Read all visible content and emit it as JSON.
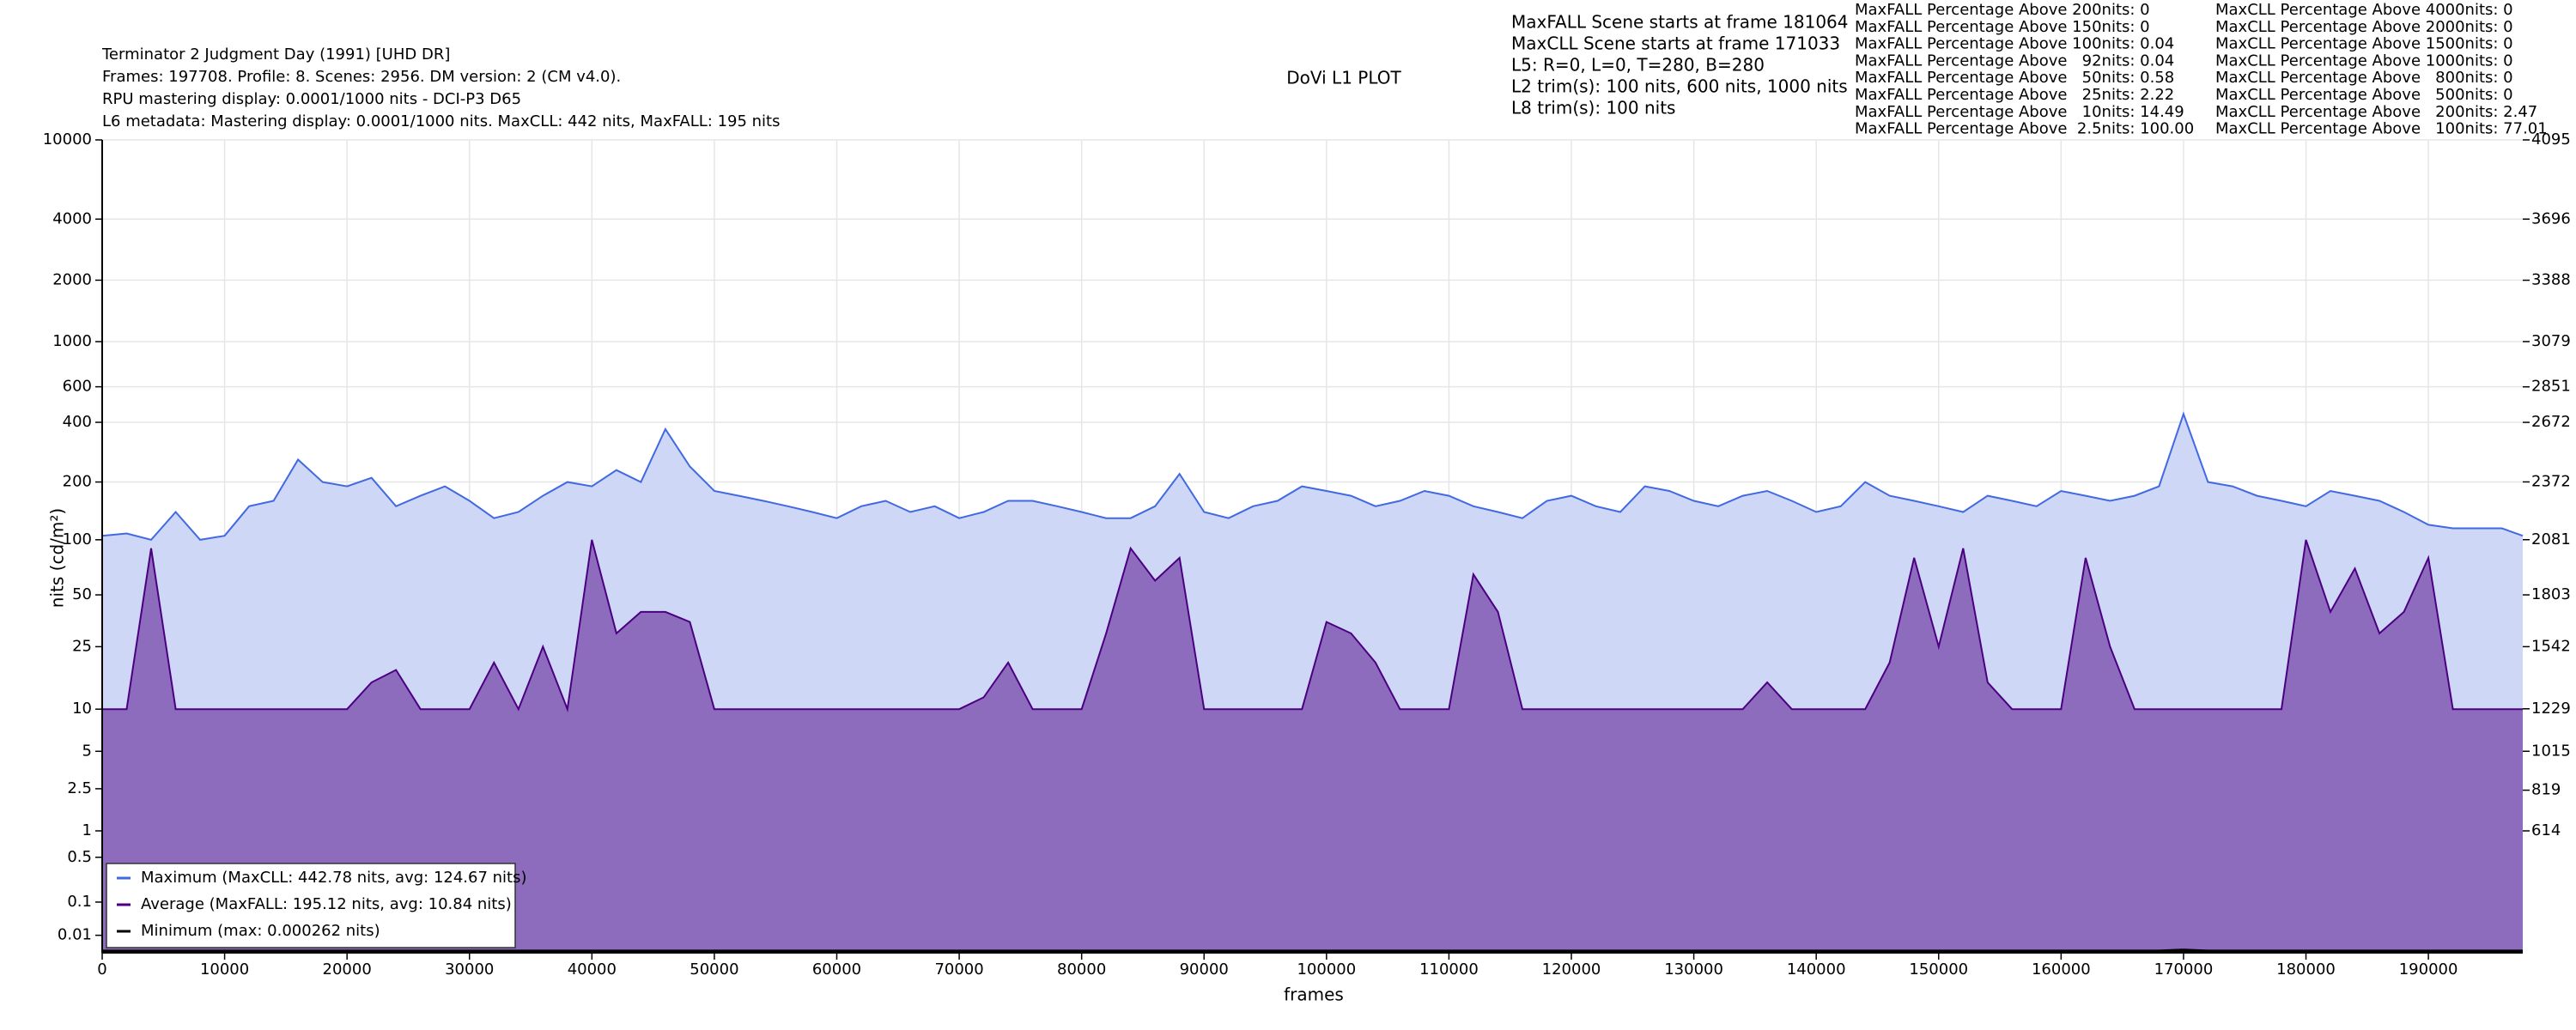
{
  "chart_data": {
    "type": "line",
    "title": "DoVi L1 PLOT",
    "info_left": [
      "Terminator 2 Judgment Day (1991) [UHD DR]",
      "Frames: 197708. Profile: 8. Scenes: 2956. DM version: 2 (CM v4.0).",
      "RPU mastering display: 0.0001/1000 nits - DCI-P3 D65",
      "L6 metadata: Mastering display: 0.0001/1000 nits. MaxCLL: 442 nits, MaxFALL: 195 nits"
    ],
    "info_mid": [
      "MaxFALL Scene starts at frame 181064",
      "MaxCLL Scene starts at frame 171033",
      "L5: R=0, L=0, T=280, B=280",
      "L2 trim(s): 100 nits, 600 nits, 1000 nits",
      "L8 trim(s): 100 nits"
    ],
    "stats_fall": [
      "MaxFALL Percentage Above 200nits: 0",
      "MaxFALL Percentage Above 150nits: 0",
      "MaxFALL Percentage Above 100nits: 0.04",
      "MaxFALL Percentage Above   92nits: 0.04",
      "MaxFALL Percentage Above   50nits: 0.58",
      "MaxFALL Percentage Above   25nits: 2.22",
      "MaxFALL Percentage Above   10nits: 14.49",
      "MaxFALL Percentage Above  2.5nits: 100.00"
    ],
    "stats_cll": [
      "MaxCLL Percentage Above 4000nits: 0",
      "MaxCLL Percentage Above 2000nits: 0",
      "MaxCLL Percentage Above 1500nits: 0",
      "MaxCLL Percentage Above 1000nits: 0",
      "MaxCLL Percentage Above   800nits: 0",
      "MaxCLL Percentage Above   500nits: 0",
      "MaxCLL Percentage Above   200nits: 2.47",
      "MaxCLL Percentage Above   100nits: 77.01"
    ],
    "xlabel": "frames",
    "ylabel": "nits (cd/m²)",
    "yscale": "pq",
    "grid": true,
    "legend": "lower left",
    "xlim": [
      0,
      197708
    ],
    "xticks": [
      0,
      10000,
      20000,
      30000,
      40000,
      50000,
      60000,
      70000,
      80000,
      90000,
      100000,
      110000,
      120000,
      130000,
      140000,
      150000,
      160000,
      170000,
      180000,
      190000
    ],
    "ylim": [
      0,
      10000
    ],
    "yticks": [
      0.01,
      0.1,
      0.5,
      1,
      2.5,
      5,
      10,
      25,
      50,
      100,
      200,
      400,
      600,
      1000,
      2000,
      4000,
      10000
    ],
    "y2lim": [
      0,
      4095
    ],
    "y2ticks": [
      614,
      819,
      1015,
      1229,
      1542,
      1803,
      2081,
      2372,
      2672,
      2851,
      3079,
      3388,
      3696,
      4095
    ],
    "x": [
      0,
      2000,
      4000,
      6000,
      8000,
      10000,
      12000,
      14000,
      16000,
      18000,
      20000,
      22000,
      24000,
      26000,
      28000,
      30000,
      32000,
      34000,
      36000,
      38000,
      40000,
      42000,
      44000,
      46000,
      48000,
      50000,
      52000,
      54000,
      56000,
      58000,
      60000,
      62000,
      64000,
      66000,
      68000,
      70000,
      72000,
      74000,
      76000,
      78000,
      80000,
      82000,
      84000,
      86000,
      88000,
      90000,
      92000,
      94000,
      96000,
      98000,
      100000,
      102000,
      104000,
      106000,
      108000,
      110000,
      112000,
      114000,
      116000,
      118000,
      120000,
      122000,
      124000,
      126000,
      128000,
      130000,
      132000,
      134000,
      136000,
      138000,
      140000,
      142000,
      144000,
      146000,
      148000,
      150000,
      152000,
      154000,
      156000,
      158000,
      160000,
      162000,
      164000,
      166000,
      168000,
      170000,
      172000,
      174000,
      176000,
      178000,
      180000,
      182000,
      184000,
      186000,
      188000,
      190000,
      192000,
      194000,
      196000,
      197708
    ],
    "series": [
      {
        "name": "Maximum (MaxCLL: 442.78 nits, avg: 124.67 nits)",
        "color": "#4169e1",
        "fill": "#cfd7f6",
        "values": [
          105,
          108,
          100,
          140,
          100,
          105,
          150,
          160,
          260,
          200,
          190,
          210,
          150,
          170,
          190,
          160,
          130,
          140,
          170,
          200,
          190,
          230,
          200,
          370,
          240,
          180,
          170,
          160,
          150,
          140,
          130,
          150,
          160,
          140,
          150,
          130,
          140,
          160,
          160,
          150,
          140,
          130,
          130,
          150,
          220,
          140,
          130,
          150,
          160,
          190,
          180,
          170,
          150,
          160,
          180,
          170,
          150,
          140,
          130,
          160,
          170,
          150,
          140,
          190,
          180,
          160,
          150,
          170,
          180,
          160,
          140,
          150,
          200,
          170,
          160,
          150,
          140,
          170,
          160,
          150,
          180,
          170,
          160,
          170,
          190,
          440,
          200,
          190,
          170,
          160,
          150,
          180,
          170,
          160,
          140,
          120,
          115,
          115,
          115,
          105
        ]
      },
      {
        "name": "Average (MaxFALL: 195.12 nits, avg: 10.84 nits)",
        "color": "#4b0082",
        "fill": "#8e6cbd",
        "values": [
          10,
          10,
          90,
          10,
          10,
          10,
          10,
          10,
          10,
          10,
          10,
          15,
          18,
          10,
          10,
          10,
          20,
          10,
          25,
          10,
          100,
          30,
          40,
          40,
          35,
          10,
          10,
          10,
          10,
          10,
          10,
          10,
          10,
          10,
          10,
          10,
          12,
          20,
          10,
          10,
          10,
          30,
          90,
          60,
          80,
          10,
          10,
          10,
          10,
          10,
          35,
          30,
          20,
          10,
          10,
          10,
          65,
          40,
          10,
          10,
          10,
          10,
          10,
          10,
          10,
          10,
          10,
          10,
          15,
          10,
          10,
          10,
          10,
          20,
          80,
          25,
          90,
          15,
          10,
          10,
          10,
          80,
          25,
          10,
          10,
          10,
          10,
          10,
          10,
          10,
          100,
          40,
          70,
          30,
          40,
          80,
          10,
          10,
          10,
          10
        ]
      },
      {
        "name": "Minimum (max: 0.000262 nits)",
        "color": "#000000",
        "values": [
          0.0001,
          0.0001,
          0.0001,
          0.0001,
          0.0001,
          0.0001,
          0.0001,
          0.0001,
          0.0001,
          0.0001,
          0.0001,
          0.0001,
          0.0001,
          0.0001,
          0.0001,
          0.0001,
          0.0001,
          0.0001,
          0.0001,
          0.0001,
          0.0001,
          0.0001,
          0.0001,
          0.0001,
          0.0001,
          0.0001,
          0.0001,
          0.0001,
          0.0001,
          0.0001,
          0.0001,
          0.0001,
          0.0001,
          0.0001,
          0.0001,
          0.0001,
          0.0001,
          0.0001,
          0.0001,
          0.0001,
          0.0001,
          0.0001,
          0.0001,
          0.0001,
          0.0001,
          0.0001,
          0.0001,
          0.0001,
          0.0001,
          0.0001,
          0.0001,
          0.0001,
          0.0001,
          0.0001,
          0.0001,
          0.0001,
          0.0001,
          0.0001,
          0.0001,
          0.0001,
          0.0001,
          0.0001,
          0.0001,
          0.0001,
          0.0001,
          0.0001,
          0.0001,
          0.0001,
          0.0001,
          0.0001,
          0.0001,
          0.0001,
          0.0001,
          0.0001,
          0.0001,
          0.0001,
          0.0001,
          0.0001,
          0.0001,
          0.0001,
          0.0001,
          0.0001,
          0.0001,
          0.0001,
          0.0001,
          0.000262,
          0.0001,
          0.0001,
          0.0001,
          0.0001,
          0.0001,
          0.0001,
          0.0001,
          0.0001,
          0.0001,
          0.0001,
          0.0001,
          0.0001,
          0.0001,
          0.0001
        ]
      }
    ]
  }
}
